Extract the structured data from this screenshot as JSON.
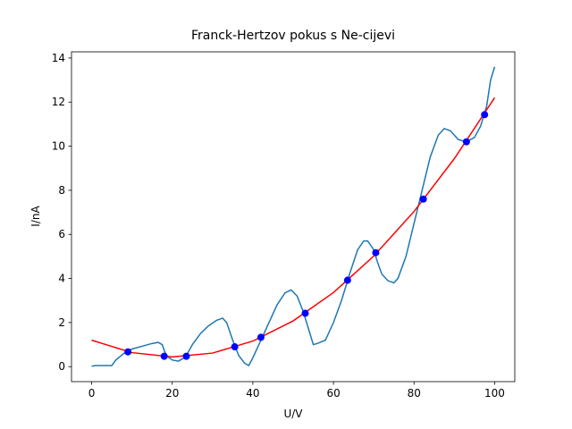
{
  "chart_data": {
    "type": "line",
    "title": "Franck-Hertzov pokus s Ne-cijevi",
    "xlabel": "U/V",
    "ylabel": "I/nA",
    "xlim": [
      -5,
      105
    ],
    "xticks": [
      0,
      20,
      40,
      60,
      80,
      100
    ],
    "ylim": [
      -0.68,
      14.28
    ],
    "yticks": [
      0,
      2,
      4,
      6,
      8,
      10,
      12,
      14
    ],
    "series": [
      {
        "type": "line",
        "color": "#1f77b4",
        "x": [
          0,
          1,
          2,
          5,
          6,
          8,
          10,
          13,
          15,
          16.5,
          17.5,
          18.5,
          20,
          21.5,
          22.5,
          23.5,
          25,
          27,
          29,
          31,
          32.5,
          33.5,
          35,
          36.5,
          38,
          39,
          40,
          42,
          44,
          46,
          48,
          49.5,
          51,
          52.5,
          54,
          55,
          56,
          58,
          60,
          62,
          64,
          66,
          67.5,
          68.5,
          70,
          71,
          72,
          73.5,
          75,
          76,
          78,
          80,
          82,
          84,
          86,
          87.5,
          89,
          91,
          93,
          95,
          96.5,
          98,
          99,
          100
        ],
        "values": [
          0.02,
          0.05,
          0.05,
          0.05,
          0.3,
          0.6,
          0.8,
          0.95,
          1.05,
          1.1,
          1.0,
          0.5,
          0.3,
          0.25,
          0.35,
          0.5,
          1.0,
          1.5,
          1.85,
          2.1,
          2.2,
          2.0,
          1.2,
          0.5,
          0.15,
          0.05,
          0.4,
          1.2,
          2.0,
          2.8,
          3.35,
          3.48,
          3.2,
          2.5,
          1.6,
          1.0,
          1.05,
          1.2,
          2.0,
          3.0,
          4.2,
          5.3,
          5.7,
          5.7,
          5.3,
          4.7,
          4.2,
          3.9,
          3.8,
          4.0,
          5.0,
          6.5,
          8.0,
          9.5,
          10.5,
          10.8,
          10.7,
          10.3,
          10.2,
          10.4,
          10.9,
          11.8,
          13.0,
          13.6
        ]
      },
      {
        "type": "line",
        "color": "#ff0000",
        "x": [
          0,
          10,
          20,
          30,
          40,
          50,
          60,
          70,
          80,
          90,
          100
        ],
        "values": [
          1.2,
          0.635,
          0.44,
          0.615,
          1.16,
          2.075,
          3.36,
          5.015,
          7.04,
          9.435,
          12.2
        ]
      },
      {
        "type": "scatter",
        "color": "#0000ff",
        "x": [
          9,
          18,
          23.5,
          35.5,
          42,
          53,
          63.5,
          70.5,
          82.3,
          93,
          97.5
        ],
        "values": [
          0.67,
          0.47,
          0.47,
          0.9,
          1.33,
          2.42,
          3.92,
          5.17,
          7.6,
          10.2,
          11.43
        ]
      }
    ]
  }
}
